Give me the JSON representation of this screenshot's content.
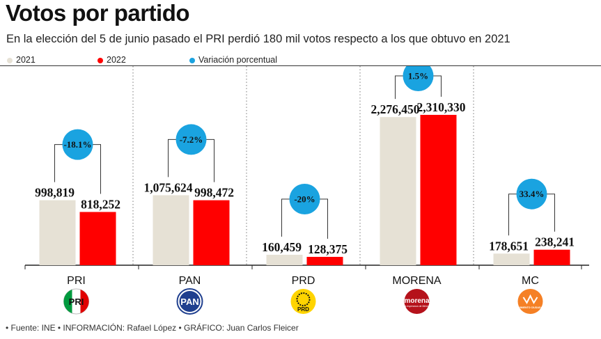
{
  "title": "Votos por partido",
  "subtitle": "En la elección del 5 de junio pasado el PRI perdió 180 mil votos respecto a los que obtuvo en 2021",
  "legend": [
    {
      "label": "2021",
      "color": "#e6e1d5"
    },
    {
      "label": "2022",
      "color": "#ff0000"
    },
    {
      "label": "Variación porcentual",
      "color": "#1aa3e0"
    }
  ],
  "footer": "• Fuente: INE • INFORMACIÓN: Rafael López • GRÁFICO: Juan Carlos Fleicer",
  "logos": {
    "PRI": "PRI",
    "PAN": "PAN",
    "PRD": "PRD",
    "MORENA": "morena",
    "MORENA_tagline": "La esperanza de México",
    "MC": "MOVIMIENTO CIUDADANO"
  },
  "chart_data": {
    "type": "bar",
    "title": "Votos por partido",
    "categories": [
      "PRI",
      "PAN",
      "PRD",
      "MORENA",
      "MC"
    ],
    "series": [
      {
        "name": "2021",
        "color": "#e6e1d5",
        "values": [
          998819,
          1075624,
          160459,
          2276450,
          178651
        ],
        "labels": [
          "998,819",
          "1,075,624",
          "160,459",
          "2,276,450",
          "178,651"
        ]
      },
      {
        "name": "2022",
        "color": "#ff0000",
        "values": [
          818252,
          998472,
          128375,
          2310330,
          238241
        ],
        "labels": [
          "818,252",
          "998,472",
          "128,375",
          "2,310,330",
          "238,241"
        ]
      }
    ],
    "variation": {
      "name": "Variación porcentual",
      "labels": [
        "-18.1%",
        "-7.2%",
        "-20%",
        "1.5%",
        "33.4%"
      ]
    },
    "ylim": [
      0,
      2310330
    ],
    "grid": false,
    "legend_position": "top-left"
  }
}
